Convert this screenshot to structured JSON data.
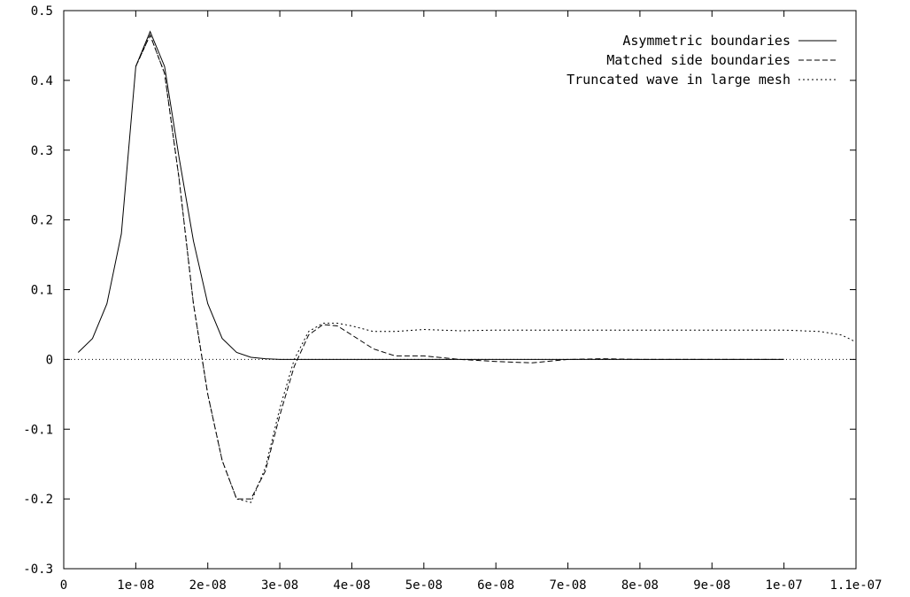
{
  "chart_data": {
    "type": "line",
    "xlim": [
      0,
      1.1e-07
    ],
    "ylim": [
      -0.3,
      0.5
    ],
    "xticks": [
      {
        "value": 0,
        "label": "0"
      },
      {
        "value": 1e-08,
        "label": "1e-08"
      },
      {
        "value": 2e-08,
        "label": "2e-08"
      },
      {
        "value": 3e-08,
        "label": "3e-08"
      },
      {
        "value": 4e-08,
        "label": "4e-08"
      },
      {
        "value": 5e-08,
        "label": "5e-08"
      },
      {
        "value": 6e-08,
        "label": "6e-08"
      },
      {
        "value": 7e-08,
        "label": "7e-08"
      },
      {
        "value": 8e-08,
        "label": "8e-08"
      },
      {
        "value": 9e-08,
        "label": "9e-08"
      },
      {
        "value": 1e-07,
        "label": "1e-07"
      },
      {
        "value": 1.1e-07,
        "label": "1.1e-07"
      }
    ],
    "yticks": [
      {
        "value": -0.3,
        "label": "-0.3"
      },
      {
        "value": -0.2,
        "label": "-0.2"
      },
      {
        "value": -0.1,
        "label": "-0.1"
      },
      {
        "value": 0,
        "label": "0"
      },
      {
        "value": 0.1,
        "label": "0.1"
      },
      {
        "value": 0.2,
        "label": "0.2"
      },
      {
        "value": 0.3,
        "label": "0.3"
      },
      {
        "value": 0.4,
        "label": "0.4"
      },
      {
        "value": 0.5,
        "label": "0.5"
      }
    ],
    "zero_line": true,
    "grid": false,
    "legend_position": "top-right",
    "series": [
      {
        "name": "Asymmetric boundaries",
        "dash": "solid",
        "points": [
          [
            2e-09,
            0.01
          ],
          [
            4e-09,
            0.03
          ],
          [
            6e-09,
            0.08
          ],
          [
            8e-09,
            0.18
          ],
          [
            1e-08,
            0.42
          ],
          [
            1.2e-08,
            0.47
          ],
          [
            1.4e-08,
            0.42
          ],
          [
            1.6e-08,
            0.29
          ],
          [
            1.8e-08,
            0.17
          ],
          [
            2e-08,
            0.08
          ],
          [
            2.2e-08,
            0.03
          ],
          [
            2.4e-08,
            0.01
          ],
          [
            2.6e-08,
            0.003
          ],
          [
            2.8e-08,
            0.001
          ],
          [
            3e-08,
            0.0
          ],
          [
            4e-08,
            0.0
          ],
          [
            5e-08,
            0.0
          ],
          [
            6e-08,
            0.0
          ],
          [
            7e-08,
            0.0
          ],
          [
            8e-08,
            0.0
          ],
          [
            9e-08,
            0.0
          ],
          [
            1e-07,
            0.0
          ]
        ]
      },
      {
        "name": "Matched side boundaries",
        "dash": "dashed",
        "points": [
          [
            1e-08,
            0.42
          ],
          [
            1.2e-08,
            0.465
          ],
          [
            1.4e-08,
            0.41
          ],
          [
            1.6e-08,
            0.26
          ],
          [
            1.8e-08,
            0.08
          ],
          [
            2e-08,
            -0.05
          ],
          [
            2.2e-08,
            -0.145
          ],
          [
            2.4e-08,
            -0.2
          ],
          [
            2.6e-08,
            -0.2
          ],
          [
            2.8e-08,
            -0.16
          ],
          [
            3e-08,
            -0.08
          ],
          [
            3.2e-08,
            -0.01
          ],
          [
            3.4e-08,
            0.035
          ],
          [
            3.6e-08,
            0.05
          ],
          [
            3.8e-08,
            0.048
          ],
          [
            4e-08,
            0.035
          ],
          [
            4.3e-08,
            0.015
          ],
          [
            4.6e-08,
            0.005
          ],
          [
            5e-08,
            0.005
          ],
          [
            5.5e-08,
            0.0
          ],
          [
            6e-08,
            -0.003
          ],
          [
            6.5e-08,
            -0.005
          ],
          [
            7e-08,
            0.0
          ],
          [
            7.5e-08,
            0.001
          ],
          [
            8e-08,
            0.0
          ],
          [
            9e-08,
            0.0
          ],
          [
            1e-07,
            0.0
          ]
        ]
      },
      {
        "name": "Truncated wave in large mesh",
        "dash": "dotted",
        "points": [
          [
            1e-08,
            0.42
          ],
          [
            1.2e-08,
            0.465
          ],
          [
            1.4e-08,
            0.41
          ],
          [
            1.6e-08,
            0.26
          ],
          [
            1.8e-08,
            0.08
          ],
          [
            2e-08,
            -0.05
          ],
          [
            2.2e-08,
            -0.145
          ],
          [
            2.4e-08,
            -0.2
          ],
          [
            2.6e-08,
            -0.205
          ],
          [
            2.8e-08,
            -0.155
          ],
          [
            3e-08,
            -0.07
          ],
          [
            3.2e-08,
            0.0
          ],
          [
            3.4e-08,
            0.04
          ],
          [
            3.6e-08,
            0.052
          ],
          [
            3.8e-08,
            0.052
          ],
          [
            4e-08,
            0.048
          ],
          [
            4.3e-08,
            0.04
          ],
          [
            4.6e-08,
            0.04
          ],
          [
            5e-08,
            0.043
          ],
          [
            5.5e-08,
            0.041
          ],
          [
            6e-08,
            0.042
          ],
          [
            7e-08,
            0.042
          ],
          [
            8e-08,
            0.042
          ],
          [
            9e-08,
            0.042
          ],
          [
            1e-07,
            0.042
          ],
          [
            1.05e-07,
            0.04
          ],
          [
            1.08e-07,
            0.035
          ],
          [
            1.1e-07,
            0.025
          ]
        ]
      }
    ]
  },
  "colors": {
    "axis": "#000000",
    "series": "#000000",
    "zero_line": "#000000",
    "background": "#ffffff"
  }
}
